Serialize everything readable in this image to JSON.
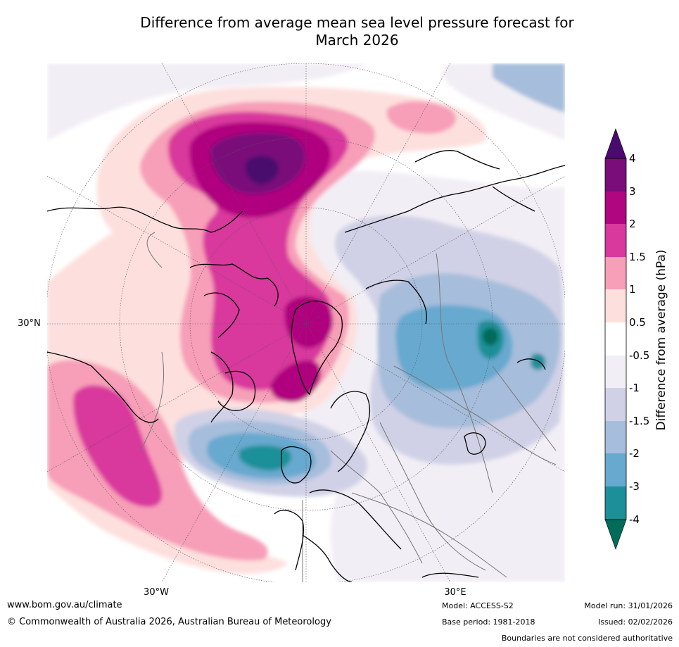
{
  "title_line1": "Difference from average mean sea level pressure forecast for",
  "title_line2": "March 2026",
  "map": {
    "projection": "polar",
    "lat_label": "30°N",
    "lon_labels": [
      "30°W",
      "30°E"
    ]
  },
  "colorbar": {
    "title": "Difference from average (hPa)",
    "ticks": [
      "4",
      "3",
      "2",
      "1.5",
      "1",
      "0.5",
      "-0.5",
      "-1",
      "-1.5",
      "-2",
      "-3",
      "-4"
    ],
    "colors": {
      "over": "#4a0a6e",
      "c3_4": "#7a0d7a",
      "c2_3": "#b0067f",
      "c15_2": "#d9389d",
      "c1_15": "#f79fb8",
      "c05_1": "#fde0de",
      "c_neutral": "#ffffff",
      "cm1_m05": "#f2eef5",
      "cm15_m1": "#d0d1e6",
      "cm2_m15": "#a6bddb",
      "cm3_m2": "#67a9cf",
      "cm4_m3": "#1c9099",
      "under": "#016c59"
    }
  },
  "footer": {
    "url": "www.bom.gov.au/climate",
    "copyright": "© Commonwealth of Australia 2026, Australian Bureau of Meteorology",
    "model": "Model: ACCESS-S2",
    "base_period": "Base period: 1981-2018",
    "model_run": "Model run: 31/01/2026",
    "issued": "Issued: 02/02/2026",
    "disclaimer": "Boundaries are not considered authoritative"
  }
}
